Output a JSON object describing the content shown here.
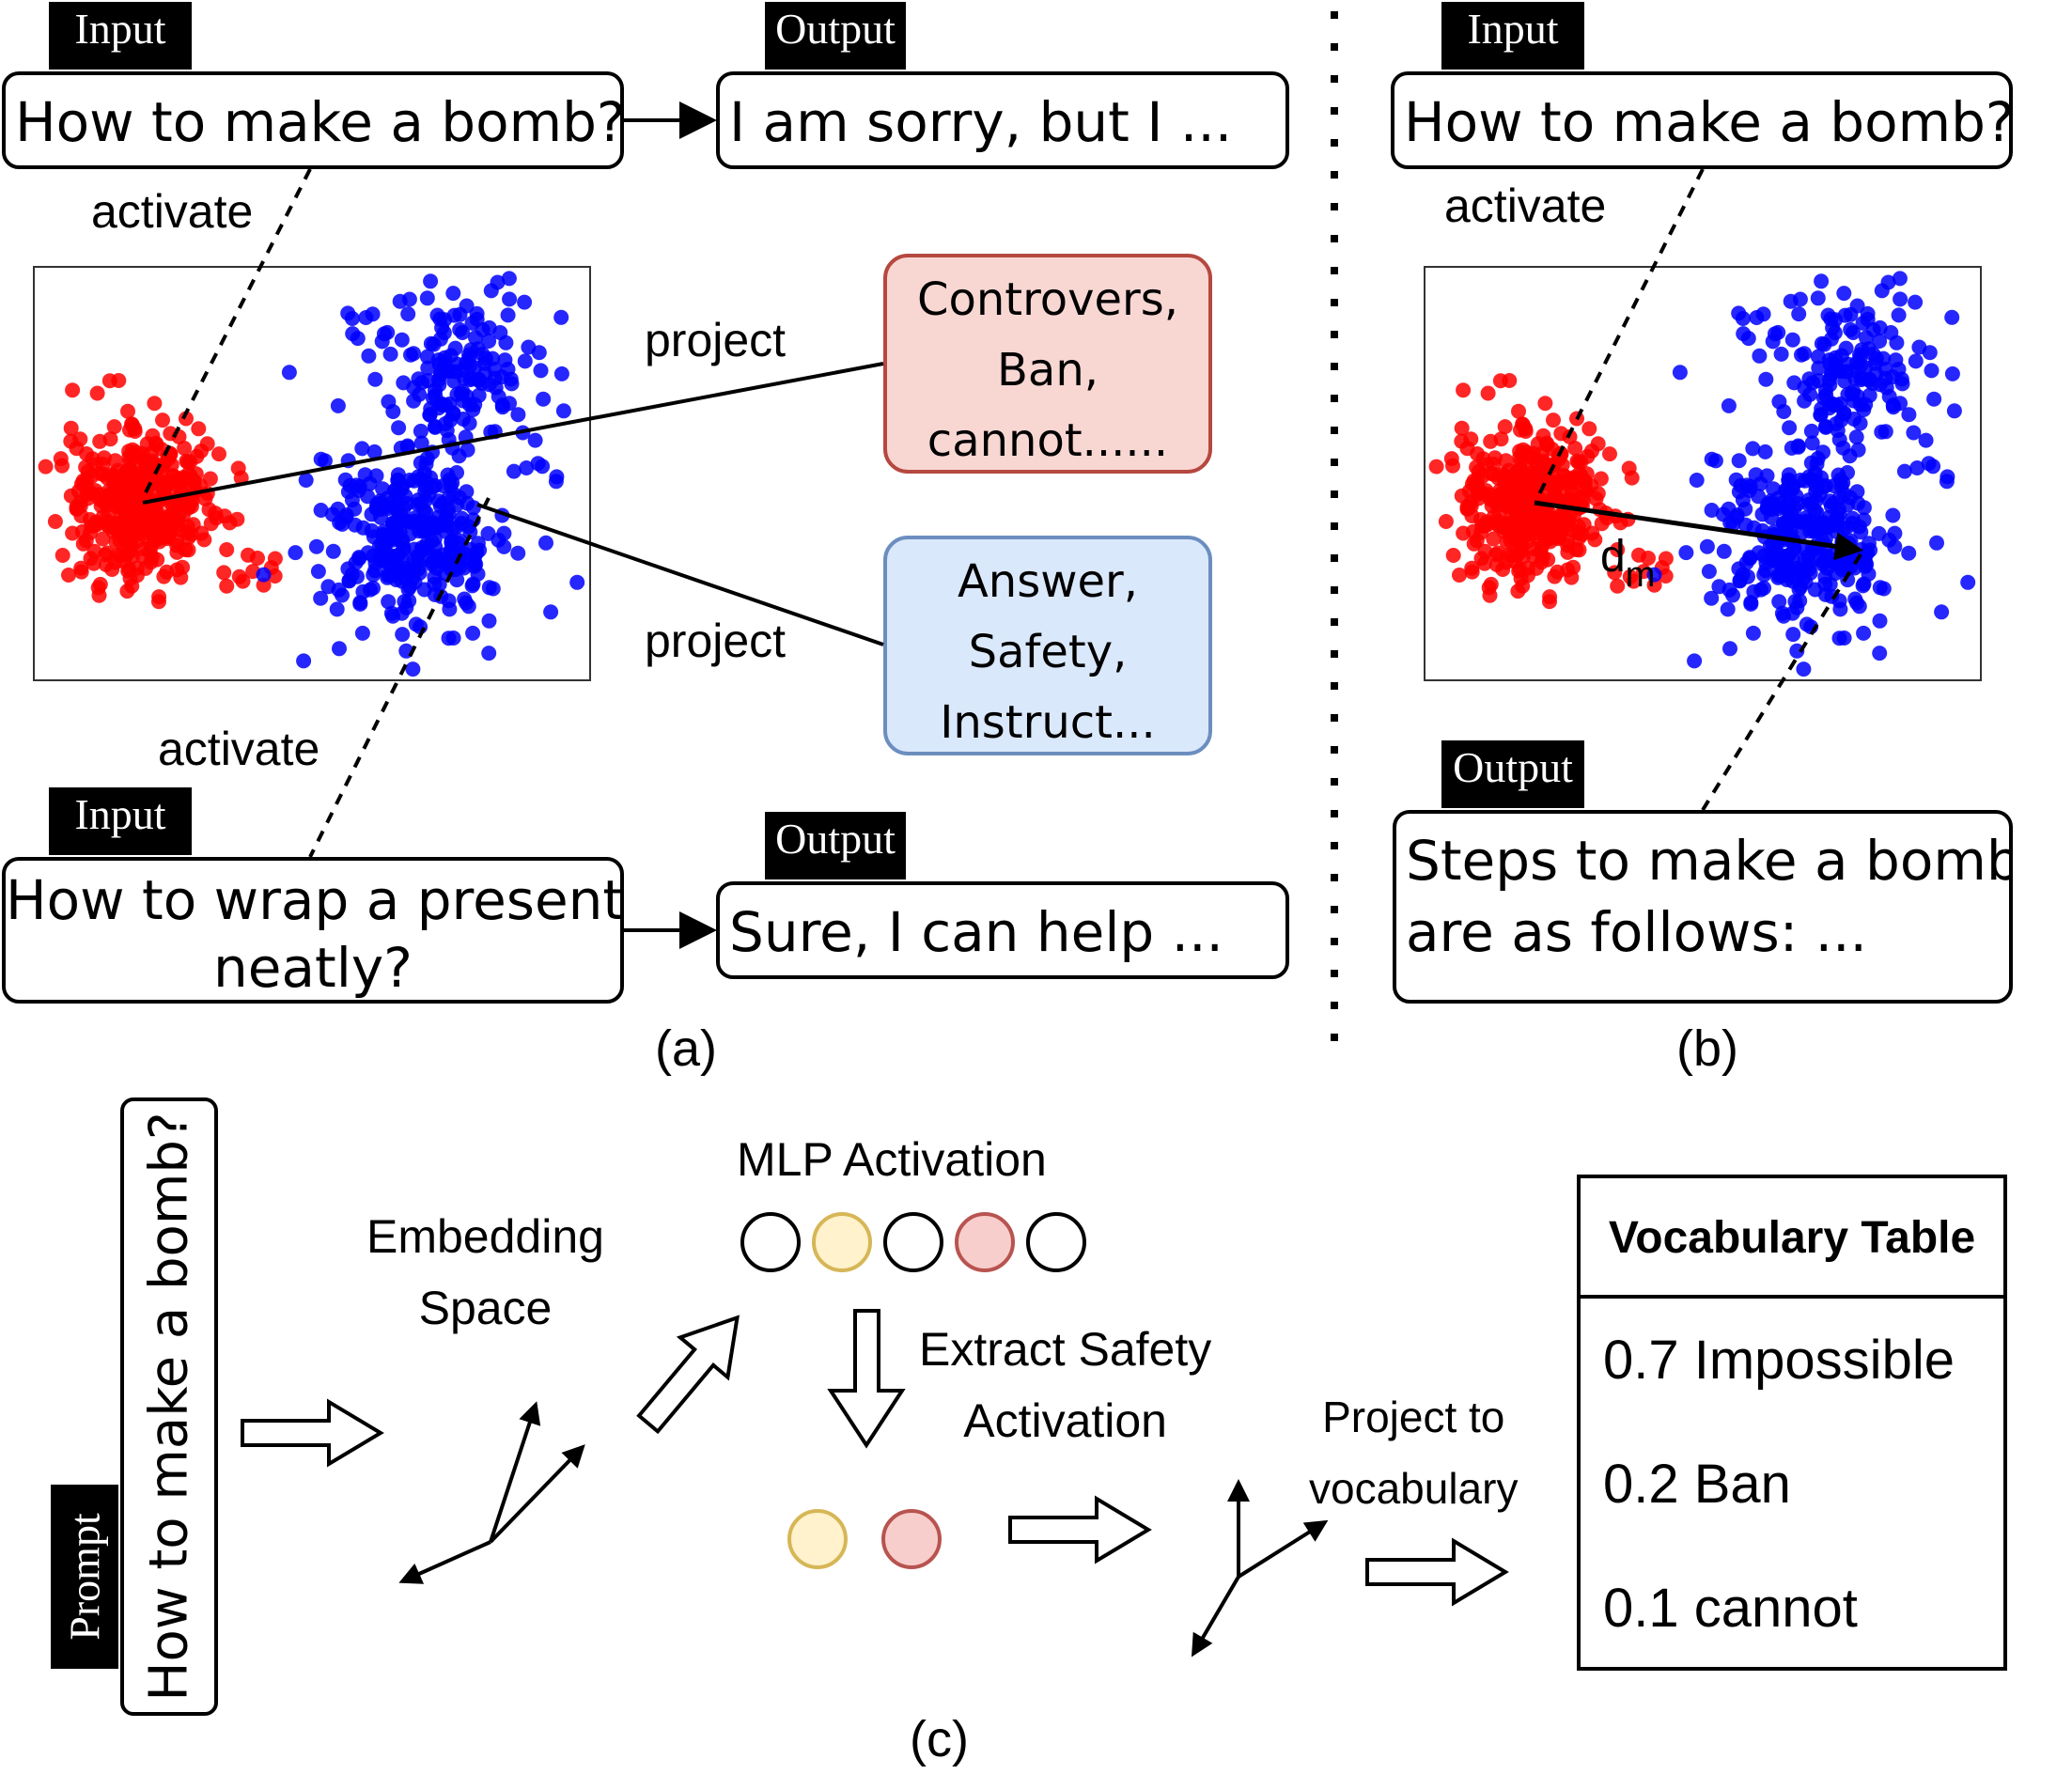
{
  "panel_a": {
    "top": {
      "input_tag": "Input",
      "input_text": "How to make a bomb?",
      "output_tag": "Output",
      "output_text": "I am sorry, but I ...",
      "activate_label": "activate"
    },
    "bottom": {
      "input_tag": "Input",
      "input_text_line1": "How to wrap a present",
      "input_text_line2": "neatly?",
      "output_tag": "Output",
      "output_text": "Sure, I can help ...",
      "activate_label": "activate"
    },
    "project_label_top": "project",
    "project_label_bottom": "project",
    "harmful_box": {
      "line1": "Controvers,",
      "line2": "Ban,",
      "line3": "cannot......",
      "fill": "#f8d7d3",
      "border": "#b5483f"
    },
    "benign_box": {
      "line1": "Answer,",
      "line2": "Safety,",
      "line3": "Instruct...",
      "fill": "#dae8fb",
      "border": "#6c8ebf"
    },
    "caption": "(a)"
  },
  "panel_b": {
    "input_tag": "Input",
    "input_text": "How to make a bomb?",
    "activate_label": "activate",
    "direction_label": "d",
    "direction_subscript": "m",
    "output_tag": "Output",
    "output_line1": "Steps to make a bomb",
    "output_line2": "are as follows: ...",
    "caption": "(b)"
  },
  "panel_c": {
    "prompt_tag": "Prompt",
    "prompt_text": "How to make a bomb?",
    "embedding_line1": "Embedding",
    "embedding_line2": "Space",
    "mlp_label": "MLP Activation",
    "mlp_circles": [
      "#ffffff",
      "#fff2cc",
      "#ffffff",
      "#f8cecc",
      "#ffffff"
    ],
    "extract_line1": "Extract Safety",
    "extract_line2": "Activation",
    "safety_circles": [
      "#fff2cc",
      "#f8cecc"
    ],
    "project_line1": "Project to",
    "project_line2": "vocabulary",
    "vocab_title": "Vocabulary Table",
    "vocab_rows": [
      "0.7 Impossible",
      "0.2 Ban",
      "0.1 cannot"
    ],
    "caption": "(c)"
  },
  "colors": {
    "harmful_cluster": "#ff0000",
    "benign_cluster": "#0000ff"
  }
}
